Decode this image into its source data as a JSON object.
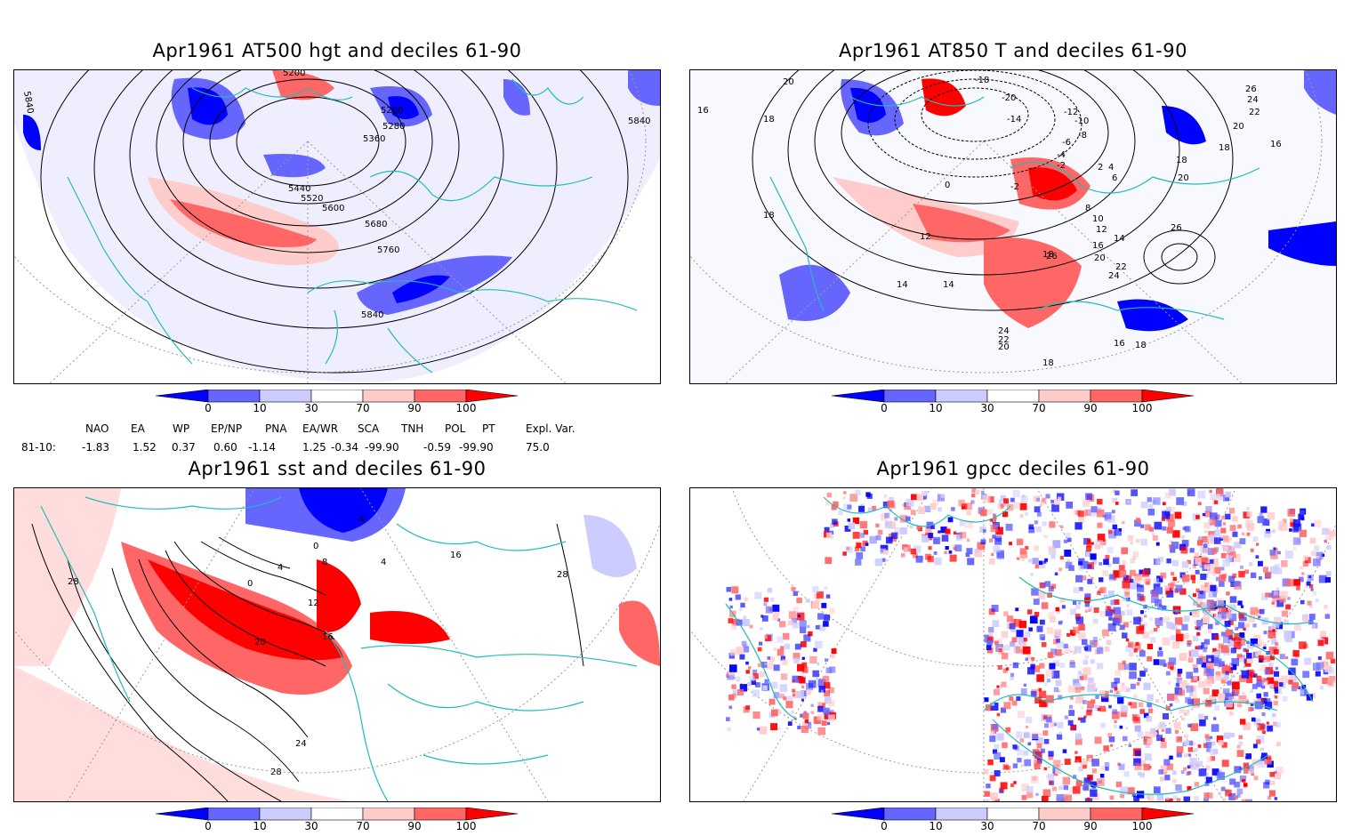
{
  "panels": {
    "p1": {
      "title": "Apr1961 AT500 hgt and deciles 61-90",
      "contour_labels": [
        "5200",
        "5280",
        "5360",
        "5440",
        "5520",
        "5600",
        "5680",
        "5760",
        "5840",
        "5840",
        "5840",
        "5200"
      ]
    },
    "p2": {
      "title": "Apr1961 AT850 T and deciles 61-90",
      "contour_labels": [
        "20",
        "16",
        "18",
        "18",
        "14",
        "12",
        "0",
        "-2",
        "-12",
        "-10",
        "-8",
        "-6",
        "-4",
        "-2",
        "2",
        "4",
        "6",
        "8",
        "10",
        "12",
        "14",
        "16",
        "18",
        "20",
        "22",
        "24",
        "26",
        "26",
        "24",
        "22",
        "20",
        "18",
        "16",
        "18",
        "20",
        "24",
        "22",
        "20",
        "18",
        "16",
        "26",
        "18",
        "14",
        "-18",
        "-20",
        "-14"
      ]
    },
    "p3": {
      "title": "Apr1961 sst and deciles 61-90",
      "contour_labels": [
        "28",
        "24",
        "20",
        "16",
        "12",
        "8",
        "4",
        "0",
        "0",
        "-4",
        "28",
        "28",
        "4",
        "16"
      ]
    },
    "p4": {
      "title": "Apr1961 gpcc deciles 61-90"
    }
  },
  "colorbar": {
    "ticks": [
      "0",
      "10",
      "30",
      "70",
      "90",
      "100"
    ],
    "colors": [
      "#0000ff",
      "#6666ff",
      "#ccccff",
      "#ffffff",
      "#ffcccc",
      "#ff6666",
      "#ff0000"
    ]
  },
  "indices": {
    "row_label": "81-10:",
    "headers": [
      "NAO",
      "EA",
      "WP",
      "EP/NP",
      "PNA",
      "EA/WR",
      "SCA",
      "TNH",
      "POL",
      "PT",
      "Expl. Var."
    ],
    "values": [
      "-1.83",
      "1.52",
      "0.37",
      "0.60",
      "-1.14",
      "1.25",
      "-0.34",
      "-99.90",
      "-0.59",
      "-99.90",
      "75.0"
    ]
  }
}
